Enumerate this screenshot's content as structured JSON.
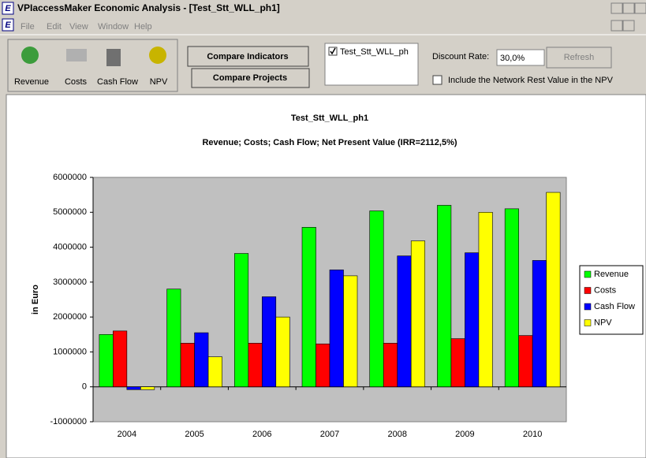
{
  "window": {
    "app_icon": "E",
    "title": "VPIaccessMaker Economic Analysis - [Test_Stt_WLL_ph1]",
    "menu": [
      "File",
      "Edit",
      "View",
      "Window",
      "Help"
    ],
    "toolbar": {
      "indicators": [
        "Revenue",
        "Costs",
        "Cash Flow",
        "NPV"
      ],
      "compare_indicators": "Compare Indicators",
      "compare_projects": "Compare Projects",
      "project_item": "Test_Stt_WLL_ph",
      "discount_label": "Discount Rate:",
      "discount_value": "30,0%",
      "refresh": "Refresh",
      "include_label": "Include the Network Rest Value in the NPV"
    }
  },
  "chart_data": {
    "type": "bar",
    "title": "Test_Stt_WLL_ph1",
    "subtitle": "Revenue; Costs; Cash Flow; Net Present Value (IRR=2112,5%)",
    "y_label": "in Euro",
    "categories": [
      "2004",
      "2005",
      "2006",
      "2007",
      "2008",
      "2009",
      "2010"
    ],
    "series": [
      {
        "name": "Revenue",
        "color": "#00ff00",
        "values": [
          1500000,
          2800000,
          3820000,
          4570000,
          5040000,
          5200000,
          5100000
        ]
      },
      {
        "name": "Costs",
        "color": "#ff0000",
        "values": [
          1600000,
          1250000,
          1250000,
          1230000,
          1250000,
          1380000,
          1470000
        ]
      },
      {
        "name": "Cash Flow",
        "color": "#0000ff",
        "values": [
          -80000,
          1550000,
          2580000,
          3350000,
          3750000,
          3840000,
          3620000
        ]
      },
      {
        "name": "NPV",
        "color": "#ffff00",
        "values": [
          -80000,
          860000,
          2000000,
          3180000,
          4180000,
          5000000,
          5570000
        ]
      }
    ],
    "ylim": [
      -1000000,
      6000000
    ],
    "yticks": [
      -1000000,
      0,
      1000000,
      2000000,
      3000000,
      4000000,
      5000000,
      6000000
    ],
    "grid": false,
    "legend": "right"
  }
}
